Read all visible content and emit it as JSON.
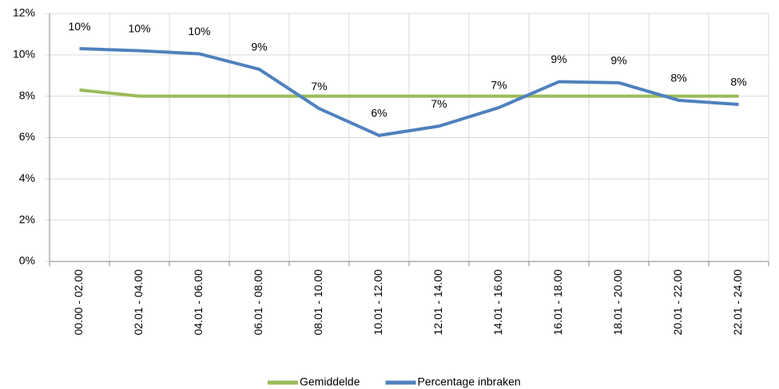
{
  "chart_data": {
    "type": "line",
    "categories": [
      "00.00 - 02.00",
      "02.01 - 04.00",
      "04.01 - 06.00",
      "06.01 - 08.00",
      "08.01 - 10.00",
      "10.01 - 12.00",
      "12.01 - 14.00",
      "14.01 - 16.00",
      "16.01 - 18.00",
      "18.01 - 20.00",
      "20.01 - 22.00",
      "22.01 - 24.00"
    ],
    "series": [
      {
        "name": "Gemiddelde",
        "color": "#9bbb59",
        "values": [
          8.3,
          8.0,
          8.0,
          8.0,
          8.0,
          8.0,
          8.0,
          8.0,
          8.0,
          8.0,
          8.0,
          8.0
        ]
      },
      {
        "name": "Percentage inbraken",
        "color": "#4f81bd",
        "values": [
          10.3,
          10.2,
          10.05,
          9.3,
          7.4,
          6.1,
          6.55,
          7.45,
          8.7,
          8.65,
          7.8,
          7.6
        ],
        "value_labels": [
          "10%",
          "10%",
          "10%",
          "9%",
          "7%",
          "6%",
          "7%",
          "7%",
          "9%",
          "9%",
          "8%",
          "8%"
        ]
      }
    ],
    "ylim": [
      0,
      12
    ],
    "yticks": [
      {
        "value": 0,
        "label": "0%"
      },
      {
        "value": 2,
        "label": "2%"
      },
      {
        "value": 4,
        "label": "4%"
      },
      {
        "value": 6,
        "label": "6%"
      },
      {
        "value": 8,
        "label": "8%"
      },
      {
        "value": 10,
        "label": "10%"
      },
      {
        "value": 12,
        "label": "12%"
      }
    ],
    "grid": true,
    "legend": "bottom"
  }
}
